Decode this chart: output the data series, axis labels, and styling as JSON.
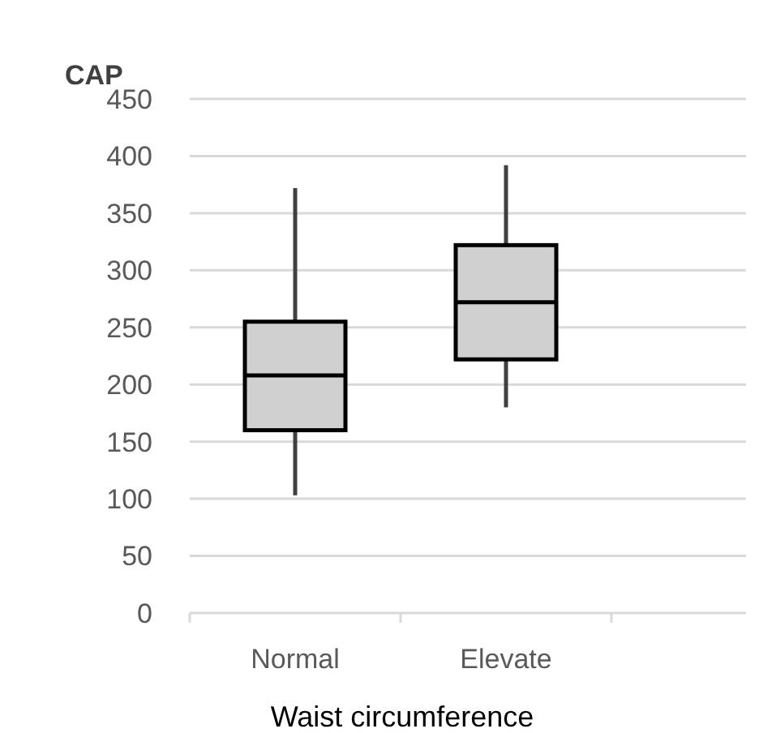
{
  "chart_data": {
    "type": "box",
    "ylabel": "CAP",
    "xlabel": "Waist circumference",
    "categories": [
      "Normal",
      "Elevate"
    ],
    "boxes": [
      {
        "low": 103,
        "q1": 160,
        "median": 208,
        "q3": 255,
        "high": 372
      },
      {
        "low": 180,
        "q1": 222,
        "median": 272,
        "q3": 322,
        "high": 392
      }
    ],
    "color": "#d0d0d0",
    "ylim": [
      0,
      450
    ],
    "yticks": [
      0,
      50,
      100,
      150,
      200,
      250,
      300,
      350,
      400,
      450
    ],
    "grid": "y"
  }
}
